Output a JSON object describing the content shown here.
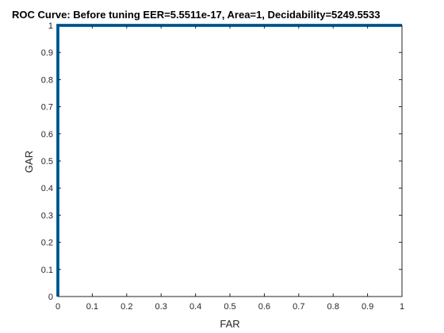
{
  "chart_data": {
    "type": "line",
    "title": "ROC Curve: Before tuning   EER=5.5511e-17,   Area=1,   Decidability=5249.5533",
    "xlabel": "FAR",
    "ylabel": "GAR",
    "xlim": [
      0,
      1
    ],
    "ylim": [
      0,
      1
    ],
    "xticks": [
      "0",
      "0.1",
      "0.2",
      "0.3",
      "0.4",
      "0.5",
      "0.6",
      "0.7",
      "0.8",
      "0.9",
      "1"
    ],
    "yticks": [
      "0",
      "0.1",
      "0.2",
      "0.3",
      "0.4",
      "0.5",
      "0.6",
      "0.7",
      "0.8",
      "0.9",
      "1"
    ],
    "grid": false,
    "series": [
      {
        "x": [
          0,
          0,
          1
        ],
        "y": [
          0,
          1,
          1
        ],
        "color": "#0072BD"
      }
    ]
  }
}
